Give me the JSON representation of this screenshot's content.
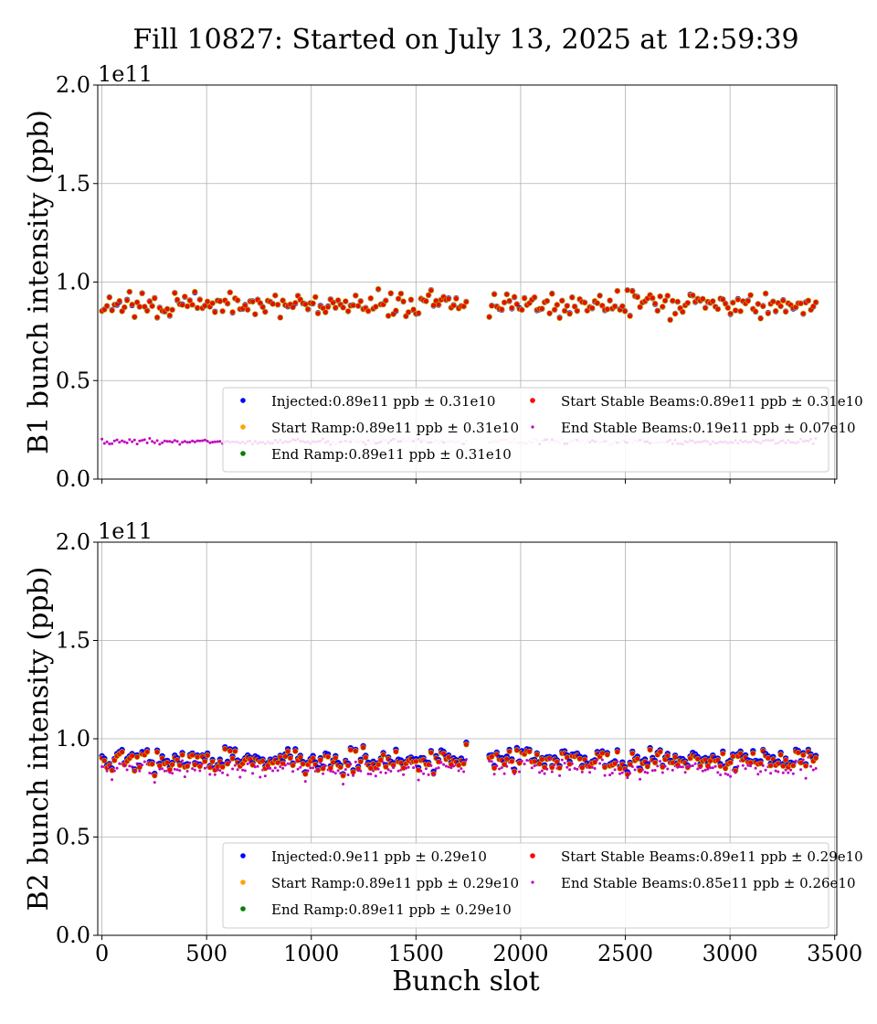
{
  "title": "Fill 10827: Started on July 13, 2025 at 12:59:39",
  "xlabel": "Bunch slot",
  "colors": {
    "injected": "#0000ff",
    "start_ramp": "#ffa500",
    "end_ramp": "#008000",
    "start_stable": "#ff0000",
    "end_stable": "#c000c0"
  },
  "chart_data": [
    {
      "type": "scatter",
      "ylabel": "B1 bunch intensity (ppb)",
      "y_multiplier": "1e11",
      "xlim": [
        -20,
        3510
      ],
      "ylim": [
        0,
        200000000000.0
      ],
      "xticks": [
        0,
        500,
        1000,
        1500,
        2000,
        2500,
        3000,
        3500
      ],
      "yticks": [
        "0.0",
        "0.5",
        "1.0",
        "1.5",
        "2.0"
      ],
      "ytick_values": [
        0,
        0.5,
        1.0,
        1.5,
        2.0
      ],
      "grid": true,
      "legend": "lower-right",
      "series": [
        {
          "name": "Injected:0.89e11 ppb ± 0.31e10",
          "mean": 89000000000.0,
          "std": 3100000000.0
        },
        {
          "name": "Start Ramp:0.89e11 ppb ± 0.31e10",
          "mean": 89000000000.0,
          "std": 3100000000.0
        },
        {
          "name": "End Ramp:0.89e11 ppb ± 0.31e10",
          "mean": 89000000000.0,
          "std": 3100000000.0
        },
        {
          "name": "Start Stable Beams:0.89e11 ppb ± 0.31e10",
          "mean": 89000000000.0,
          "std": 3100000000.0
        },
        {
          "name": "End Stable Beams:0.19e11 ppb ± 0.07e10",
          "mean": 19000000000.0,
          "std": 700000000.0
        }
      ]
    },
    {
      "type": "scatter",
      "ylabel": "B2 bunch intensity (ppb)",
      "y_multiplier": "1e11",
      "xlim": [
        -20,
        3510
      ],
      "ylim": [
        0,
        200000000000.0
      ],
      "xticks": [
        0,
        500,
        1000,
        1500,
        2000,
        2500,
        3000,
        3500
      ],
      "yticks": [
        "0.0",
        "0.5",
        "1.0",
        "1.5",
        "2.0"
      ],
      "ytick_values": [
        0,
        0.5,
        1.0,
        1.5,
        2.0
      ],
      "grid": true,
      "legend": "lower-right",
      "series": [
        {
          "name": "Injected:0.9e11 ppb ± 0.29e10",
          "mean": 90000000000.0,
          "std": 2900000000.0
        },
        {
          "name": "Start Ramp:0.89e11 ppb ± 0.29e10",
          "mean": 89000000000.0,
          "std": 2900000000.0
        },
        {
          "name": "End Ramp:0.89e11 ppb ± 0.29e10",
          "mean": 89000000000.0,
          "std": 2900000000.0
        },
        {
          "name": "Start Stable Beams:0.89e11 ppb ± 0.29e10",
          "mean": 89000000000.0,
          "std": 2900000000.0
        },
        {
          "name": "End Stable Beams:0.85e11 ppb ± 0.26e10",
          "mean": 85000000000.0,
          "std": 2600000000.0
        }
      ]
    }
  ]
}
